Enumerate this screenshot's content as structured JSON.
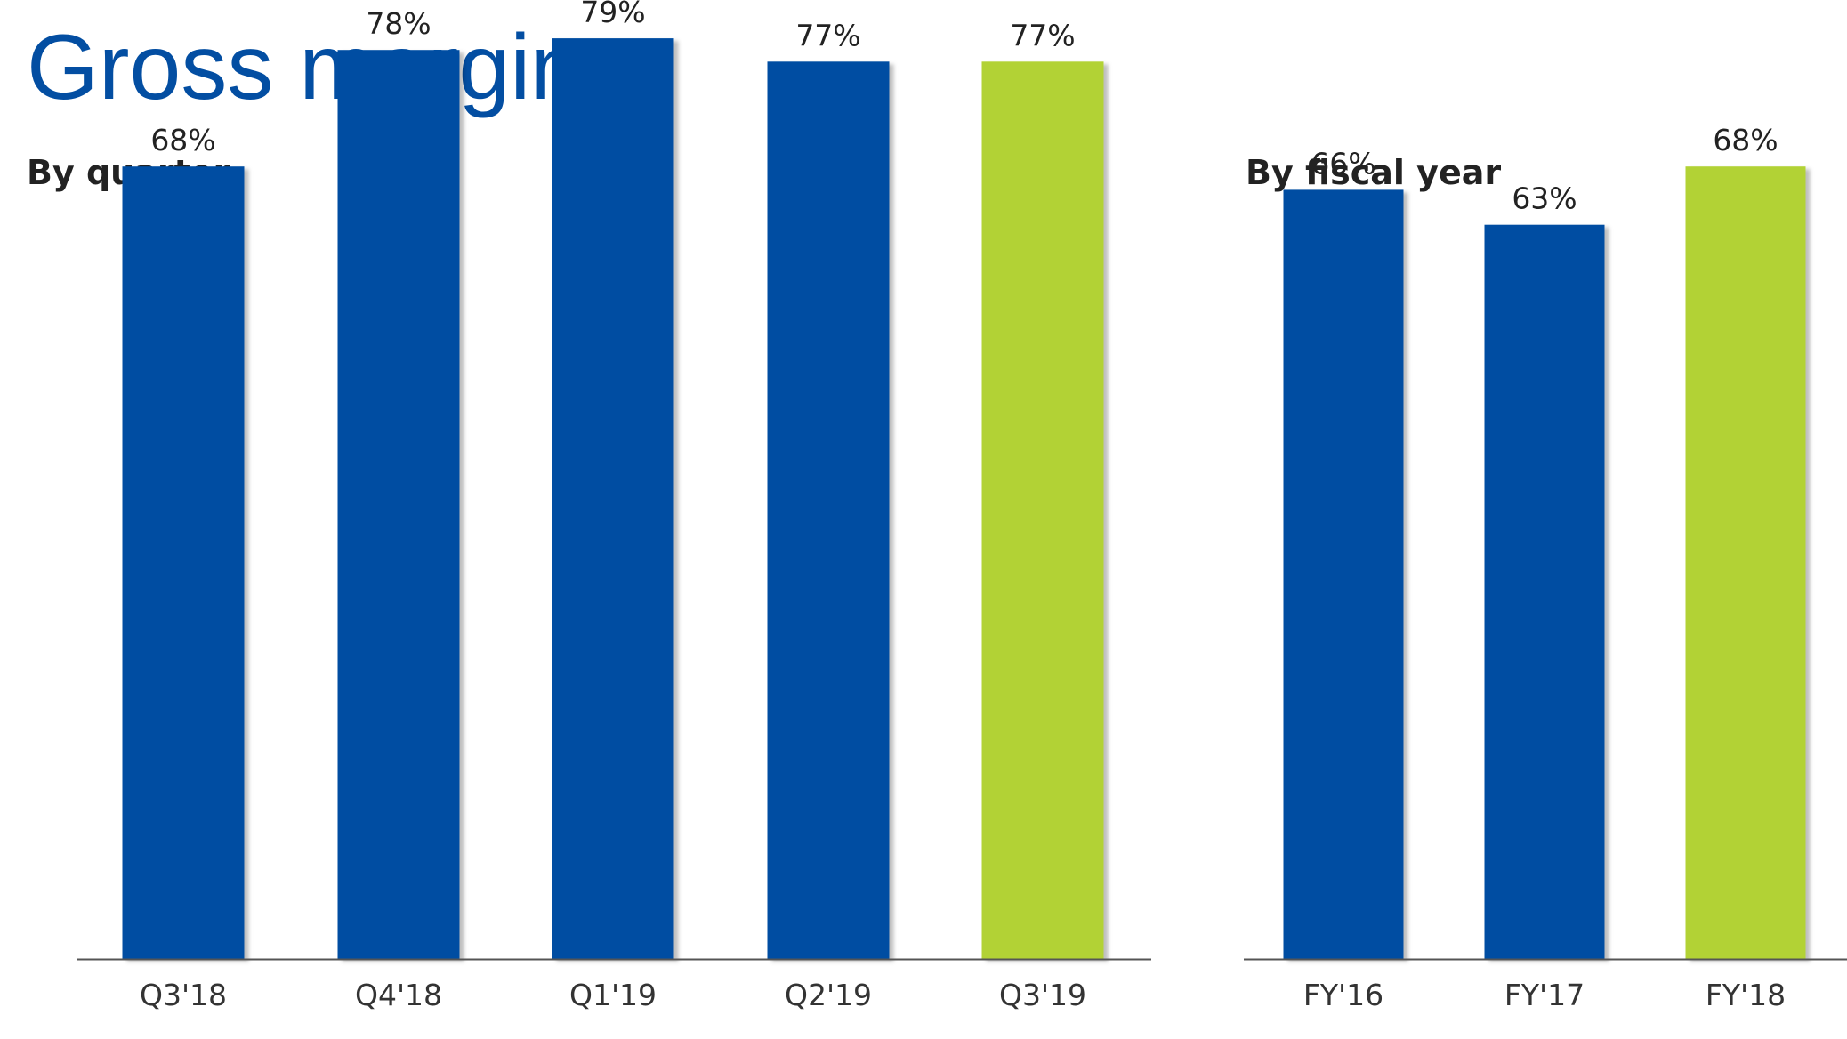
{
  "title": "Gross margin",
  "chart_data": [
    {
      "type": "bar",
      "title": "By quarter",
      "categories": [
        "Q3'18",
        "Q4'18",
        "Q1'19",
        "Q2'19",
        "Q3'19"
      ],
      "values": [
        68,
        78,
        79,
        77,
        77
      ],
      "value_labels": [
        "68%",
        "78%",
        "79%",
        "77%",
        "77%"
      ],
      "bar_colors": [
        "#034ea2",
        "#034ea2",
        "#034ea2",
        "#034ea2",
        "#b2d235"
      ],
      "ylim": [
        0,
        100
      ]
    },
    {
      "type": "bar",
      "title": "By fiscal year",
      "categories": [
        "FY'16",
        "FY'17",
        "FY'18"
      ],
      "values": [
        66,
        63,
        68
      ],
      "value_labels": [
        "66%",
        "63%",
        "68%"
      ],
      "bar_colors": [
        "#034ea2",
        "#034ea2",
        "#b2d235"
      ],
      "ylim": [
        0,
        100
      ]
    }
  ],
  "colors": {
    "primary": "#034ea2",
    "highlight": "#b2d235",
    "axis": "#555555"
  }
}
